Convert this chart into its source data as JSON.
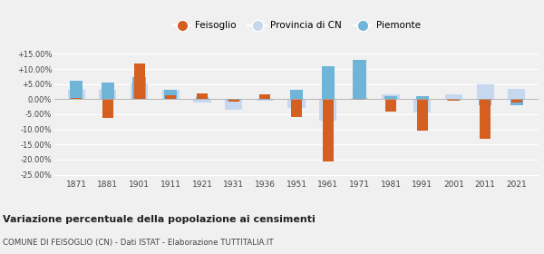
{
  "years": [
    1871,
    1881,
    1901,
    1911,
    1921,
    1931,
    1936,
    1951,
    1961,
    1971,
    1981,
    1991,
    2001,
    2011,
    2021
  ],
  "feisoglio": [
    0.3,
    -6.2,
    11.8,
    1.2,
    1.8,
    -0.8,
    1.5,
    -5.8,
    -20.5,
    -0.3,
    -4.0,
    -10.5,
    -0.5,
    -13.0,
    -1.0
  ],
  "provincia_cn": [
    3.0,
    3.0,
    5.2,
    3.0,
    -1.0,
    -3.5,
    -0.5,
    -3.0,
    -7.0,
    0.5,
    1.5,
    -4.5,
    1.5,
    5.0,
    3.3
  ],
  "piemonte": [
    6.0,
    5.5,
    7.2,
    3.0,
    0.8,
    -0.5,
    -0.2,
    3.0,
    11.0,
    13.0,
    1.0,
    1.0,
    -0.5,
    -2.0,
    -2.0
  ],
  "color_feisoglio": "#d45f20",
  "color_provincia": "#c5d8f0",
  "color_piemonte": "#6eb5d8",
  "title": "Variazione percentuale della popolazione ai censimenti",
  "subtitle": "COMUNE DI FEISOGLIO (CN) - Dati ISTAT - Elaborazione TUTTITALIA.IT",
  "ylim": [
    -26,
    16
  ],
  "yticks": [
    -25,
    -20,
    -15,
    -10,
    -5,
    0,
    5,
    10,
    15
  ],
  "background_color": "#f0f0f0"
}
